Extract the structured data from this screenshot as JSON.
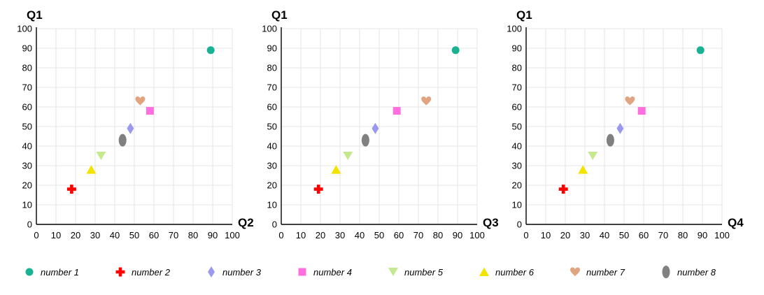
{
  "chart_data": [
    {
      "type": "scatter",
      "xlabel": "Q2",
      "ylabel": "Q1",
      "xlim": [
        0,
        100
      ],
      "ylim": [
        0,
        100
      ],
      "xticks": [
        0,
        10,
        20,
        30,
        40,
        50,
        60,
        70,
        80,
        90,
        100
      ],
      "yticks": [
        0,
        10,
        20,
        30,
        40,
        50,
        60,
        70,
        80,
        90,
        100
      ],
      "grid": true,
      "points": [
        {
          "series": "number 1",
          "x": 89,
          "y": 89
        },
        {
          "series": "number 2",
          "x": 18,
          "y": 18
        },
        {
          "series": "number 3",
          "x": 48,
          "y": 49
        },
        {
          "series": "number 4",
          "x": 58,
          "y": 58
        },
        {
          "series": "number 5",
          "x": 33,
          "y": 35
        },
        {
          "series": "number 6",
          "x": 28,
          "y": 28
        },
        {
          "series": "number 7",
          "x": 53,
          "y": 63
        },
        {
          "series": "number 8",
          "x": 44,
          "y": 43
        }
      ]
    },
    {
      "type": "scatter",
      "xlabel": "Q3",
      "ylabel": "Q1",
      "xlim": [
        0,
        100
      ],
      "ylim": [
        0,
        100
      ],
      "xticks": [
        0,
        10,
        20,
        30,
        40,
        50,
        60,
        70,
        80,
        90,
        100
      ],
      "yticks": [
        0,
        10,
        20,
        30,
        40,
        50,
        60,
        70,
        80,
        90,
        100
      ],
      "grid": true,
      "points": [
        {
          "series": "number 1",
          "x": 89,
          "y": 89
        },
        {
          "series": "number 2",
          "x": 19,
          "y": 18
        },
        {
          "series": "number 3",
          "x": 48,
          "y": 49
        },
        {
          "series": "number 4",
          "x": 59,
          "y": 58
        },
        {
          "series": "number 5",
          "x": 34,
          "y": 35
        },
        {
          "series": "number 6",
          "x": 28,
          "y": 28
        },
        {
          "series": "number 7",
          "x": 74,
          "y": 63
        },
        {
          "series": "number 8",
          "x": 43,
          "y": 43
        }
      ]
    },
    {
      "type": "scatter",
      "xlabel": "Q4",
      "ylabel": "Q1",
      "xlim": [
        0,
        100
      ],
      "ylim": [
        0,
        100
      ],
      "xticks": [
        0,
        10,
        20,
        30,
        40,
        50,
        60,
        70,
        80,
        90,
        100
      ],
      "yticks": [
        0,
        10,
        20,
        30,
        40,
        50,
        60,
        70,
        80,
        90,
        100
      ],
      "grid": true,
      "points": [
        {
          "series": "number 1",
          "x": 89,
          "y": 89
        },
        {
          "series": "number 2",
          "x": 19,
          "y": 18
        },
        {
          "series": "number 3",
          "x": 48,
          "y": 49
        },
        {
          "series": "number 4",
          "x": 59,
          "y": 58
        },
        {
          "series": "number 5",
          "x": 34,
          "y": 35
        },
        {
          "series": "number 6",
          "x": 29,
          "y": 28
        },
        {
          "series": "number 7",
          "x": 53,
          "y": 63
        },
        {
          "series": "number 8",
          "x": 43,
          "y": 43
        }
      ]
    }
  ],
  "legend": {
    "placement": "bottom",
    "items": [
      {
        "name": "number 1",
        "marker": "circle",
        "color": "#19b394"
      },
      {
        "name": "number 2",
        "marker": "cross",
        "color": "#ff0000"
      },
      {
        "name": "number 3",
        "marker": "diamond",
        "color": "#9b99ee"
      },
      {
        "name": "number 4",
        "marker": "square",
        "color": "#ff6fdf"
      },
      {
        "name": "number 5",
        "marker": "triangle-down",
        "color": "#c5ea8d"
      },
      {
        "name": "number 6",
        "marker": "triangle-up",
        "color": "#f3e300"
      },
      {
        "name": "number 7",
        "marker": "heart",
        "color": "#e0a480"
      },
      {
        "name": "number 8",
        "marker": "ellipse",
        "color": "#808080"
      }
    ]
  }
}
